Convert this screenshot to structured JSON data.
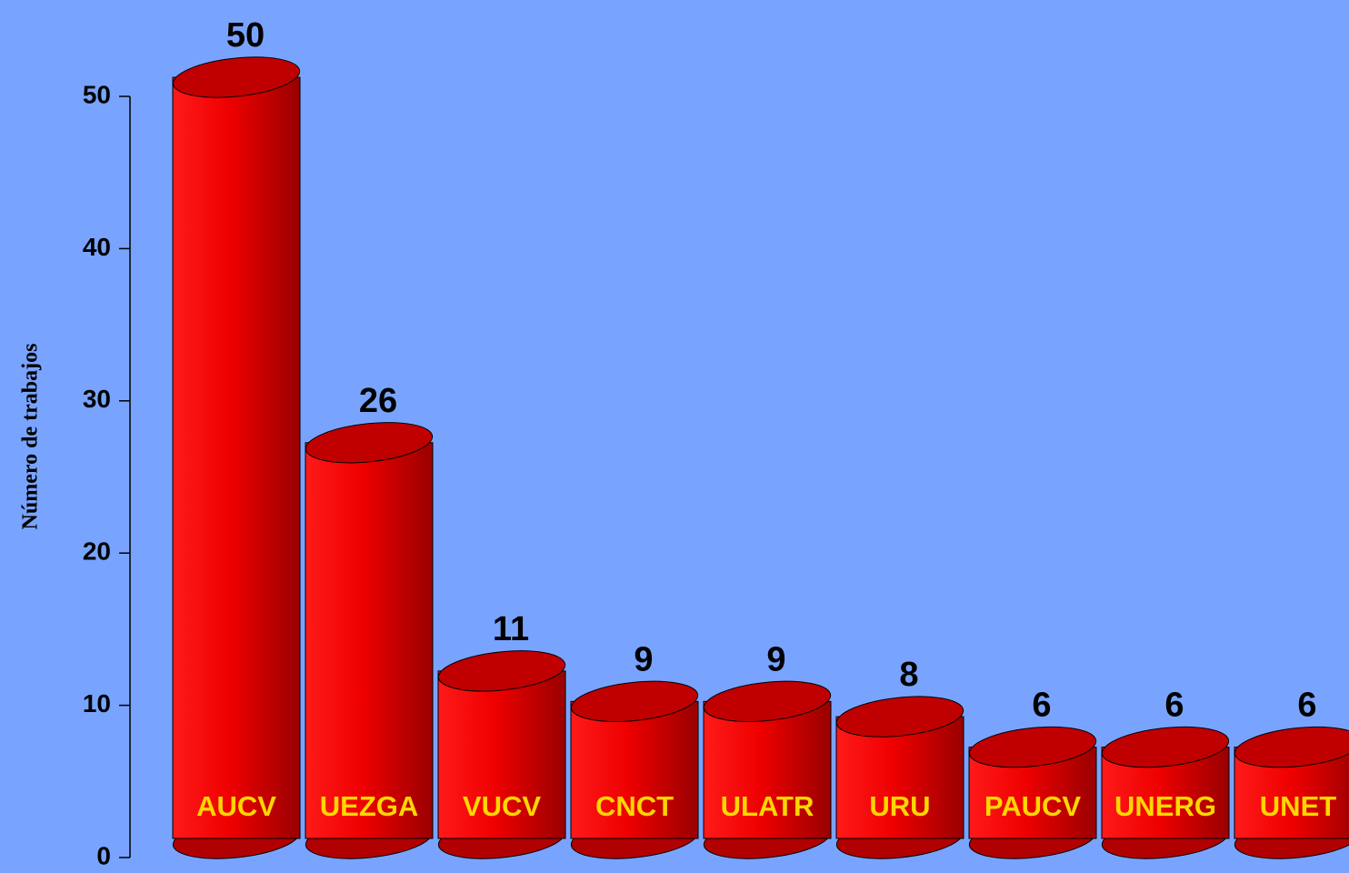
{
  "chart_data": {
    "type": "bar",
    "y_axis_label": "Número de trabajos",
    "categories": [
      "AUCV",
      "UEZGA",
      "VUCV",
      "CNCT",
      "ULATR",
      "URU",
      "PAUCV",
      "UNERG",
      "UNET"
    ],
    "values": [
      50,
      26,
      11,
      9,
      9,
      8,
      6,
      6,
      6
    ],
    "color": "#e00000",
    "ylim": [
      0,
      50
    ],
    "yticks": [
      0,
      10,
      20,
      30,
      40,
      50
    ]
  }
}
